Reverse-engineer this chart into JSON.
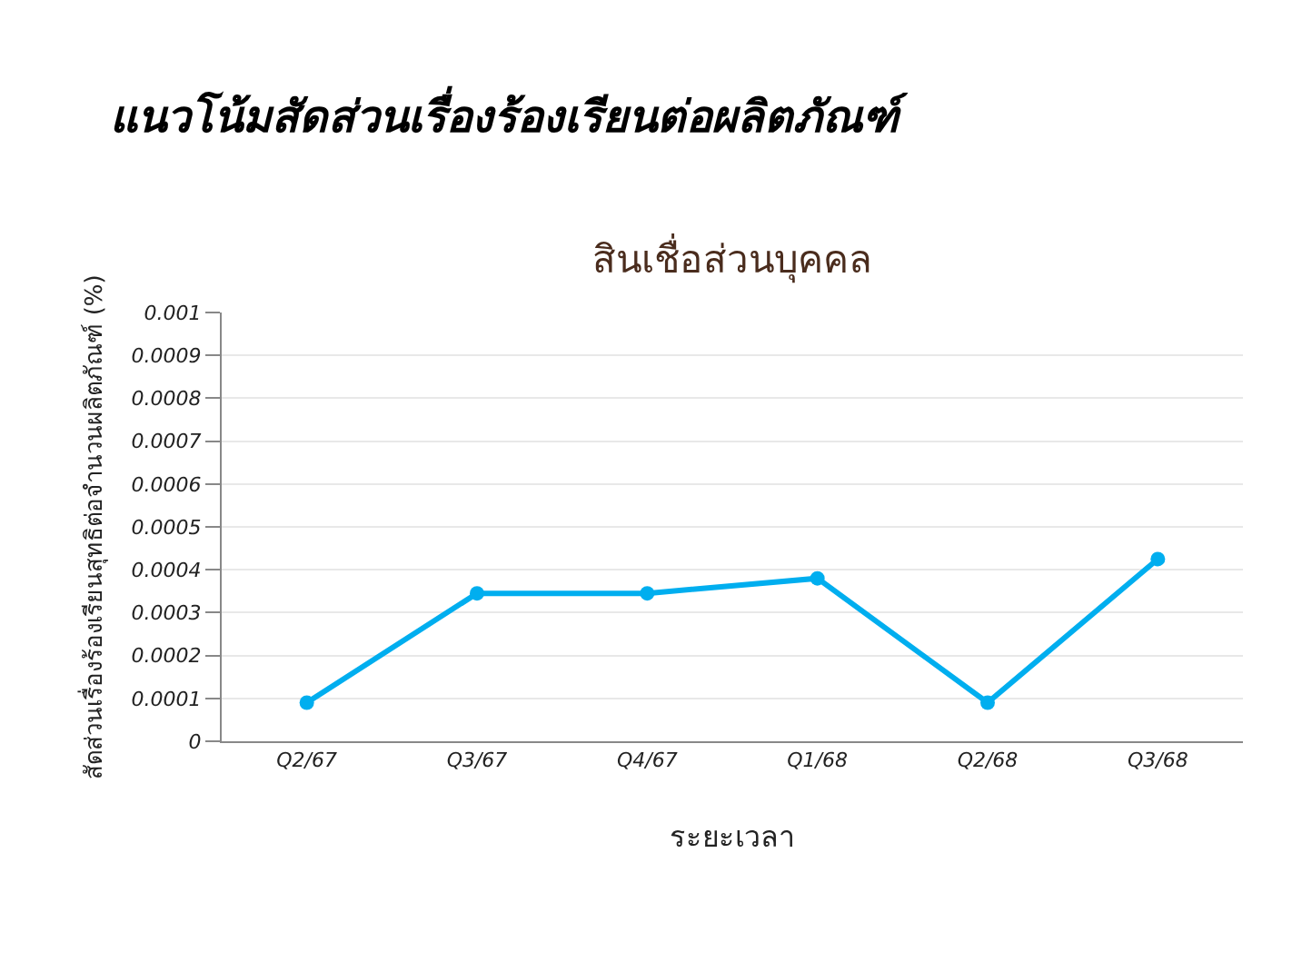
{
  "chart_data": {
    "type": "line",
    "title": "แนวโน้มสัดส่วนเรื่องร้องเรียนต่อผลิตภัณฑ์",
    "subtitle": "สินเชื่อส่วนบุคคล",
    "xlabel": "ระยะเวลา",
    "ylabel": "สัดส่วนเรื่องร้องเรียนสุทธิต่อจำนวนผลิตภัณฑ์ (%)",
    "categories": [
      "Q2/67",
      "Q3/67",
      "Q4/67",
      "Q1/68",
      "Q2/68",
      "Q3/68"
    ],
    "series": [
      {
        "color": "#00aeef",
        "values": [
          9e-05,
          0.000345,
          0.000345,
          0.00038,
          9e-05,
          0.000425
        ]
      }
    ],
    "ylim": [
      0,
      0.001
    ],
    "yticks": [
      0,
      0.0001,
      0.0002,
      0.0003,
      0.0004,
      0.0005,
      0.0006,
      0.0007,
      0.0008,
      0.0009,
      0.001
    ],
    "grid": "y",
    "marker": "circle",
    "line_style": "solid"
  }
}
